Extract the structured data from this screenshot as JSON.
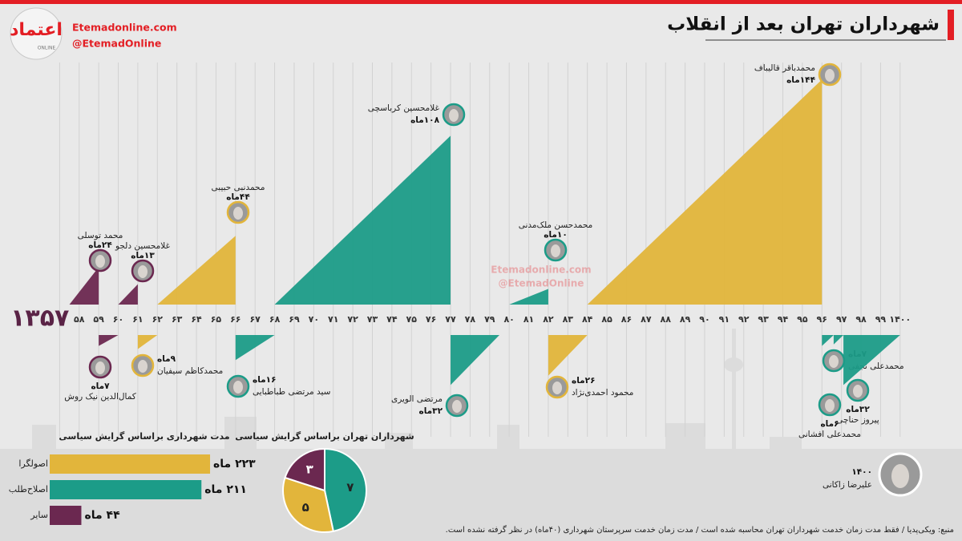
{
  "header": {
    "title": "شهرداران تهران بعد از انقلاب",
    "logo": "اعتماد",
    "logo_sub": "ONLINE",
    "site": "Etemadonline.com",
    "handle": "@EtemadOnline"
  },
  "chart_data": [
    {
      "type": "timeline",
      "xlim": [
        1356,
        1400.5
      ],
      "xticks": [
        {
          "value": 1357,
          "label": "۱۳۵۷"
        },
        {
          "value": 1358,
          "label": "۵۸"
        },
        {
          "value": 1359,
          "label": "۵۹"
        },
        {
          "value": 1360,
          "label": "۶۰"
        },
        {
          "value": 1361,
          "label": "۶۱"
        },
        {
          "value": 1362,
          "label": "۶۲"
        },
        {
          "value": 1363,
          "label": "۶۳"
        },
        {
          "value": 1364,
          "label": "۶۴"
        },
        {
          "value": 1365,
          "label": "۶۵"
        },
        {
          "value": 1366,
          "label": "۶۶"
        },
        {
          "value": 1367,
          "label": "۶۷"
        },
        {
          "value": 1368,
          "label": "۶۸"
        },
        {
          "value": 1369,
          "label": "۶۹"
        },
        {
          "value": 1370,
          "label": "۷۰"
        },
        {
          "value": 1371,
          "label": "۷۱"
        },
        {
          "value": 1372,
          "label": "۷۲"
        },
        {
          "value": 1373,
          "label": "۷۳"
        },
        {
          "value": 1374,
          "label": "۷۴"
        },
        {
          "value": 1375,
          "label": "۷۵"
        },
        {
          "value": 1376,
          "label": "۷۶"
        },
        {
          "value": 1377,
          "label": "۷۷"
        },
        {
          "value": 1378,
          "label": "۷۸"
        },
        {
          "value": 1379,
          "label": "۷۹"
        },
        {
          "value": 1380,
          "label": "۸۰"
        },
        {
          "value": 1381,
          "label": "۸۱"
        },
        {
          "value": 1382,
          "label": "۸۲"
        },
        {
          "value": 1383,
          "label": "۸۳"
        },
        {
          "value": 1384,
          "label": "۸۴"
        },
        {
          "value": 1385,
          "label": "۸۵"
        },
        {
          "value": 1386,
          "label": "۸۶"
        },
        {
          "value": 1387,
          "label": "۸۷"
        },
        {
          "value": 1388,
          "label": "۸۸"
        },
        {
          "value": 1389,
          "label": "۸۹"
        },
        {
          "value": 1390,
          "label": "۹۰"
        },
        {
          "value": 1391,
          "label": "۹۱"
        },
        {
          "value": 1392,
          "label": "۹۲"
        },
        {
          "value": 1393,
          "label": "۹۳"
        },
        {
          "value": 1394,
          "label": "۹۴"
        },
        {
          "value": 1395,
          "label": "۹۵"
        },
        {
          "value": 1396,
          "label": "۹۶"
        },
        {
          "value": 1397,
          "label": "۹۷"
        },
        {
          "value": 1398,
          "label": "۹۸"
        },
        {
          "value": 1399,
          "label": "۹۹"
        },
        {
          "value": 1400,
          "label": "۱۴۰۰"
        }
      ],
      "mayors": [
        {
          "name": "محمد توسلی",
          "months": 24,
          "months_label": "۲۴ماه",
          "start": 1357.5,
          "end": 1359,
          "side": "above",
          "color": "#6b2850"
        },
        {
          "name": "کمال‌الدین نیک روش",
          "months": 7,
          "months_label": "۷ماه",
          "start": 1359,
          "end": 1360,
          "side": "below",
          "color": "#6b2850"
        },
        {
          "name": "غلامحسین دلجو",
          "months": 13,
          "months_label": "۱۳ماه",
          "start": 1360,
          "end": 1361,
          "side": "above",
          "color": "#6b2850"
        },
        {
          "name": "محمدکاظم سیفیان",
          "months": 9,
          "months_label": "۹ماه",
          "start": 1361,
          "end": 1362,
          "side": "below",
          "color": "#e2b53b"
        },
        {
          "name": "محمدنبی حبیبی",
          "months": 44,
          "months_label": "۴۴ماه",
          "start": 1362,
          "end": 1366,
          "side": "above",
          "color": "#e2b53b"
        },
        {
          "name": "سید مرتضی طباطبایی",
          "months": 16,
          "months_label": "۱۶ماه",
          "start": 1366,
          "end": 1368,
          "side": "below",
          "color": "#1c9c88"
        },
        {
          "name": "غلامحسین کرباسچی",
          "months": 108,
          "months_label": "۱۰۸ماه",
          "start": 1368,
          "end": 1377,
          "side": "above",
          "color": "#1c9c88"
        },
        {
          "name": "مرتضی الویری",
          "months": 32,
          "months_label": "۳۲ماه",
          "start": 1377,
          "end": 1379.5,
          "side": "below",
          "color": "#1c9c88"
        },
        {
          "name": "محمدحسن ملک‌مدنی",
          "months": 10,
          "months_label": "۱۰ماه",
          "start": 1380,
          "end": 1382,
          "side": "above",
          "color": "#1c9c88"
        },
        {
          "name": "محمود احمدی‌نژاد",
          "months": 26,
          "months_label": "۲۶ماه",
          "start": 1382,
          "end": 1384,
          "side": "below",
          "color": "#e2b53b"
        },
        {
          "name": "محمدباقر قالیباف",
          "months": 144,
          "months_label": "۱۴۴ماه",
          "start": 1384,
          "end": 1396,
          "side": "above",
          "color": "#e2b53b"
        },
        {
          "name": "محمدعلی نجفی",
          "months": 7,
          "months_label": "۷ماه",
          "start": 1396,
          "end": 1396.6,
          "side": "below",
          "color": "#1c9c88"
        },
        {
          "name": "محمدعلی افشانی",
          "months": 6,
          "months_label": "۶ماه",
          "start": 1396.6,
          "end": 1397.1,
          "side": "below",
          "color": "#1c9c88"
        },
        {
          "name": "پیروز حناچی",
          "months": 32,
          "months_label": "۳۲ماه",
          "start": 1397.1,
          "end": 1400,
          "side": "below",
          "color": "#1c9c88"
        }
      ],
      "current": {
        "label": "۱۴۰۰",
        "name": "علیرضا زاکانی"
      }
    },
    {
      "type": "bar",
      "title": "مدت شهرداری براساس گرایش سیاسی",
      "categories": [
        "اصولگرا",
        "اصلاح‌طلب",
        "سایر"
      ],
      "values": [
        223,
        211,
        44
      ],
      "value_labels": [
        "۲۲۳ ماه",
        "۲۱۱ ماه",
        "۴۴ ماه"
      ],
      "colors": [
        "#e2b53b",
        "#1c9c88",
        "#6b2850"
      ]
    },
    {
      "type": "pie",
      "title": "شهرداران تهران براساس گرایش سیاسی",
      "values": [
        7,
        5,
        3
      ],
      "value_labels": [
        "۷",
        "۵",
        "۳"
      ],
      "colors": [
        "#1c9c88",
        "#e2b53b",
        "#6b2850"
      ]
    }
  ],
  "footer": {
    "source": "منبع: ویکی‌پدیا / فقط مدت زمان خدمت شهرداران تهران محاسبه شده است / مدت زمان خدمت سرپرستان شهرداری (۴۰ماه) در نظر گرفته نشده است."
  }
}
